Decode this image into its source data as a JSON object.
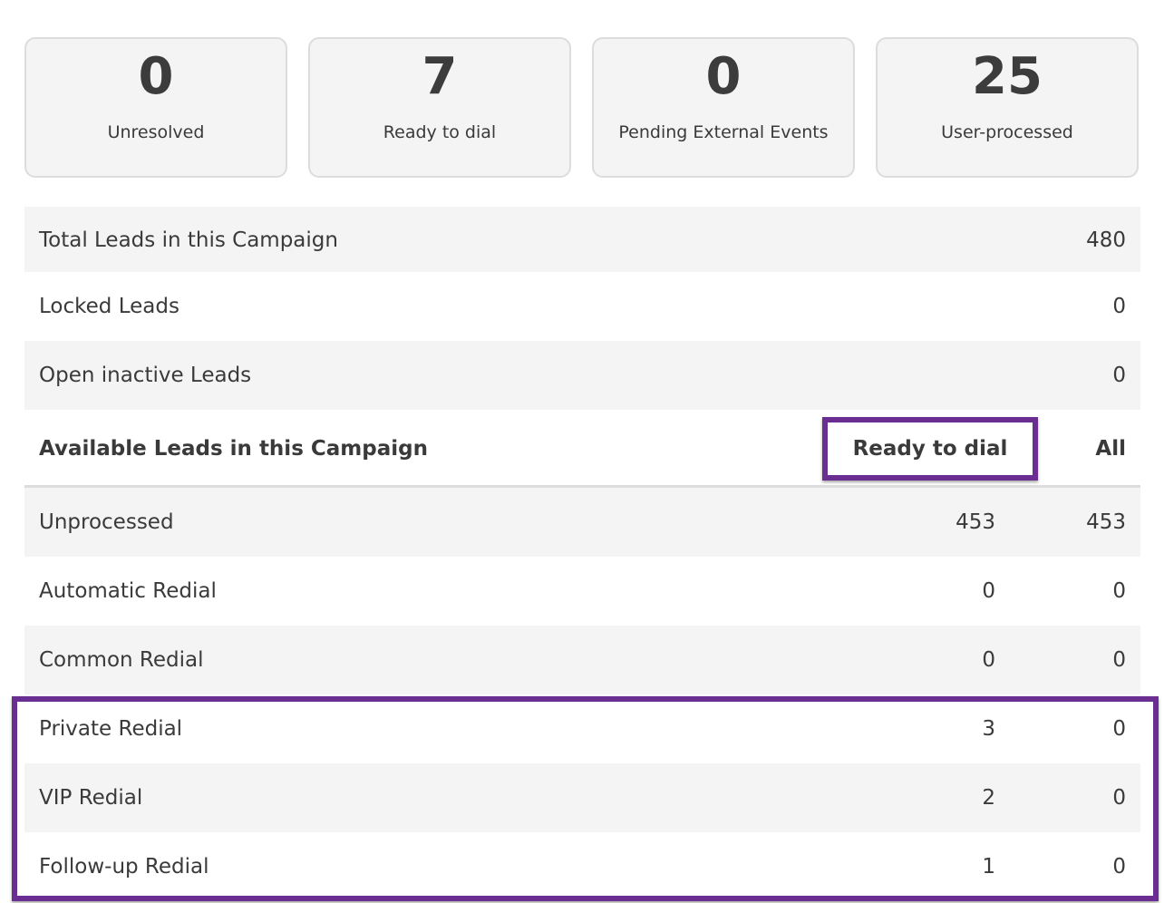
{
  "stats": [
    {
      "value": "0",
      "label": "Unresolved"
    },
    {
      "value": "7",
      "label": "Ready to dial"
    },
    {
      "value": "0",
      "label": "Pending External Events"
    },
    {
      "value": "25",
      "label": "User-processed"
    }
  ],
  "summary": {
    "total": {
      "label": "Total Leads in this Campaign",
      "value": "480"
    },
    "locked": {
      "label": "Locked Leads",
      "value": "0"
    },
    "inactive": {
      "label": "Open inactive Leads",
      "value": "0"
    }
  },
  "available": {
    "title": "Available Leads in this Campaign",
    "col_ready": "Ready to dial",
    "col_all": "All",
    "rows": [
      {
        "label": "Unprocessed",
        "ready": "453",
        "all": "453"
      },
      {
        "label": "Automatic Redial",
        "ready": "0",
        "all": "0"
      },
      {
        "label": "Common Redial",
        "ready": "0",
        "all": "0"
      },
      {
        "label": "Private Redial",
        "ready": "3",
        "all": "0"
      },
      {
        "label": "VIP Redial",
        "ready": "2",
        "all": "0"
      },
      {
        "label": "Follow-up Redial",
        "ready": "1",
        "all": "0"
      }
    ]
  },
  "colors": {
    "highlight": "#6a2d91",
    "row_shade": "#f4f4f4",
    "card_border": "#dcdcdc"
  }
}
